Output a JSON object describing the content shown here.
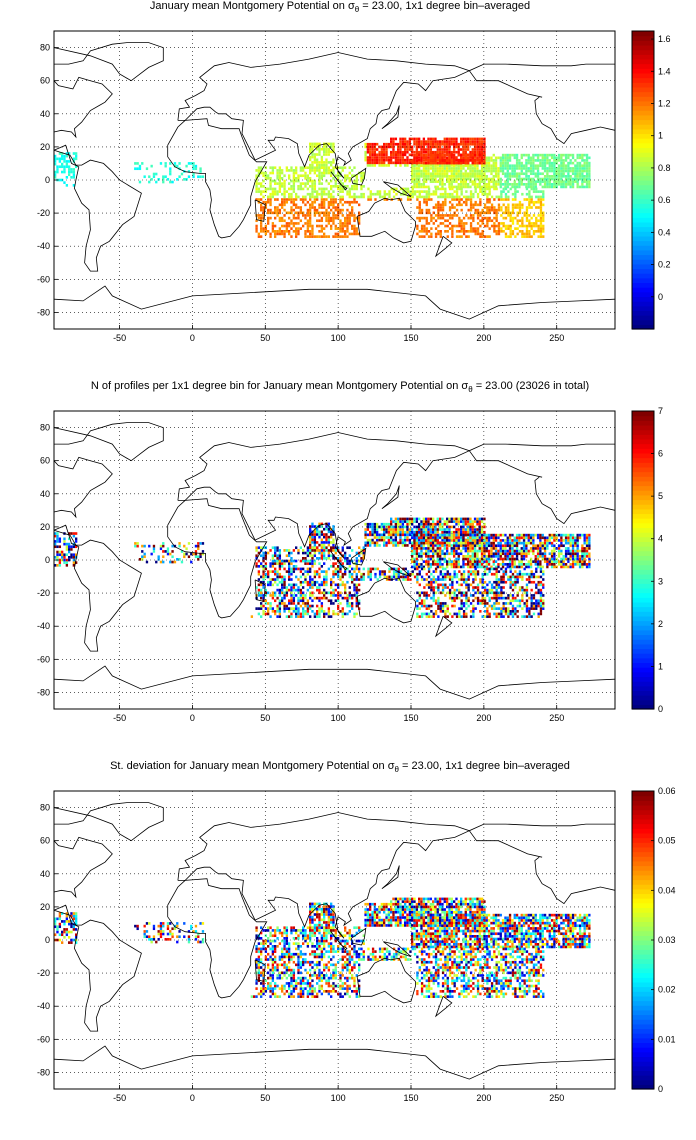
{
  "maps": [
    {
      "title_before": "January mean Montgomery Potential on σ",
      "title_sub": "θ",
      "title_after": " = 23.00, 1x1 degree bin–averaged",
      "colorbar_ticks": [
        "0",
        "0.2",
        "0.4",
        "0.6",
        "0.8",
        "1",
        "1.2",
        "1.4",
        "1.6"
      ],
      "colorbar_range": [
        -0.2,
        1.65
      ],
      "field": "mean"
    },
    {
      "title_before": "N of profiles per 1x1 degree bin for January mean Montgomery Potential on σ",
      "title_sub": "θ",
      "title_after": " = 23.00 (23026 in total)",
      "colorbar_ticks": [
        "0",
        "1",
        "2",
        "3",
        "4",
        "5",
        "6",
        "7"
      ],
      "colorbar_range": [
        0,
        7
      ],
      "field": "count"
    },
    {
      "title_before": "St. deviation for January mean Montgomery Potential on σ",
      "title_sub": "θ",
      "title_after": " = 23.00, 1x1 degree bin–averaged",
      "colorbar_ticks": [
        "0",
        "0.01",
        "0.02",
        "0.03",
        "0.04",
        "0.05",
        "0.06"
      ],
      "colorbar_range": [
        0,
        0.06
      ],
      "field": "std"
    }
  ],
  "axes": {
    "xlim": [
      -95,
      290
    ],
    "ylim": [
      -90,
      90
    ],
    "xticks": [
      "-50",
      "0",
      "50",
      "100",
      "150",
      "200",
      "250"
    ],
    "yticks": [
      "80",
      "60",
      "40",
      "20",
      "0",
      "-20",
      "-40",
      "-60",
      "-80"
    ],
    "grid": "dotted",
    "colormap": "jet"
  }
}
